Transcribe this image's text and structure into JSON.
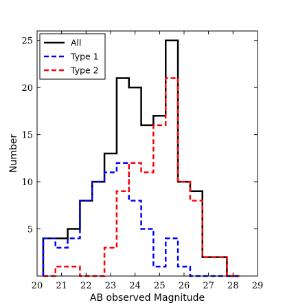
{
  "chart_data": {
    "type": "histogram-step",
    "title": "",
    "xlabel": "AB observed Magnitude",
    "ylabel": "Number",
    "xlim": [
      20,
      29
    ],
    "ylim": [
      0,
      26
    ],
    "bin_edges": [
      20.25,
      20.75,
      21.25,
      21.75,
      22.25,
      22.75,
      23.25,
      23.75,
      24.25,
      24.75,
      25.25,
      25.75,
      26.25,
      26.75,
      27.25,
      27.75,
      28.25
    ],
    "x_ticks": [
      "20",
      "21",
      "22",
      "23",
      "24",
      "25",
      "26",
      "27",
      "28",
      "29"
    ],
    "y_ticks": [
      {
        "value": 5,
        "label": "5"
      },
      {
        "value": 10,
        "label": "10"
      },
      {
        "value": 15,
        "label": "15"
      },
      {
        "value": 20,
        "label": "20"
      },
      {
        "value": 25,
        "label": "25"
      }
    ],
    "legend_position": "top-left",
    "series": [
      {
        "name": "All",
        "color": "#000000",
        "dash": "solid",
        "values": [
          4,
          4,
          5,
          8,
          10,
          13,
          21,
          20,
          16,
          17,
          25,
          10,
          9,
          2,
          2,
          0
        ]
      },
      {
        "name": "Type 1",
        "color": "#0000ff",
        "dash": "dashed",
        "values": [
          4,
          3,
          4,
          8,
          10,
          11,
          12,
          8,
          5,
          1,
          4,
          1,
          0,
          0,
          0,
          0
        ]
      },
      {
        "name": "Type 2",
        "color": "#ff0000",
        "dash": "dashed",
        "values": [
          0,
          1,
          1,
          0,
          0,
          3,
          9,
          12,
          11,
          16,
          21,
          10,
          8,
          2,
          2,
          0
        ]
      }
    ]
  }
}
